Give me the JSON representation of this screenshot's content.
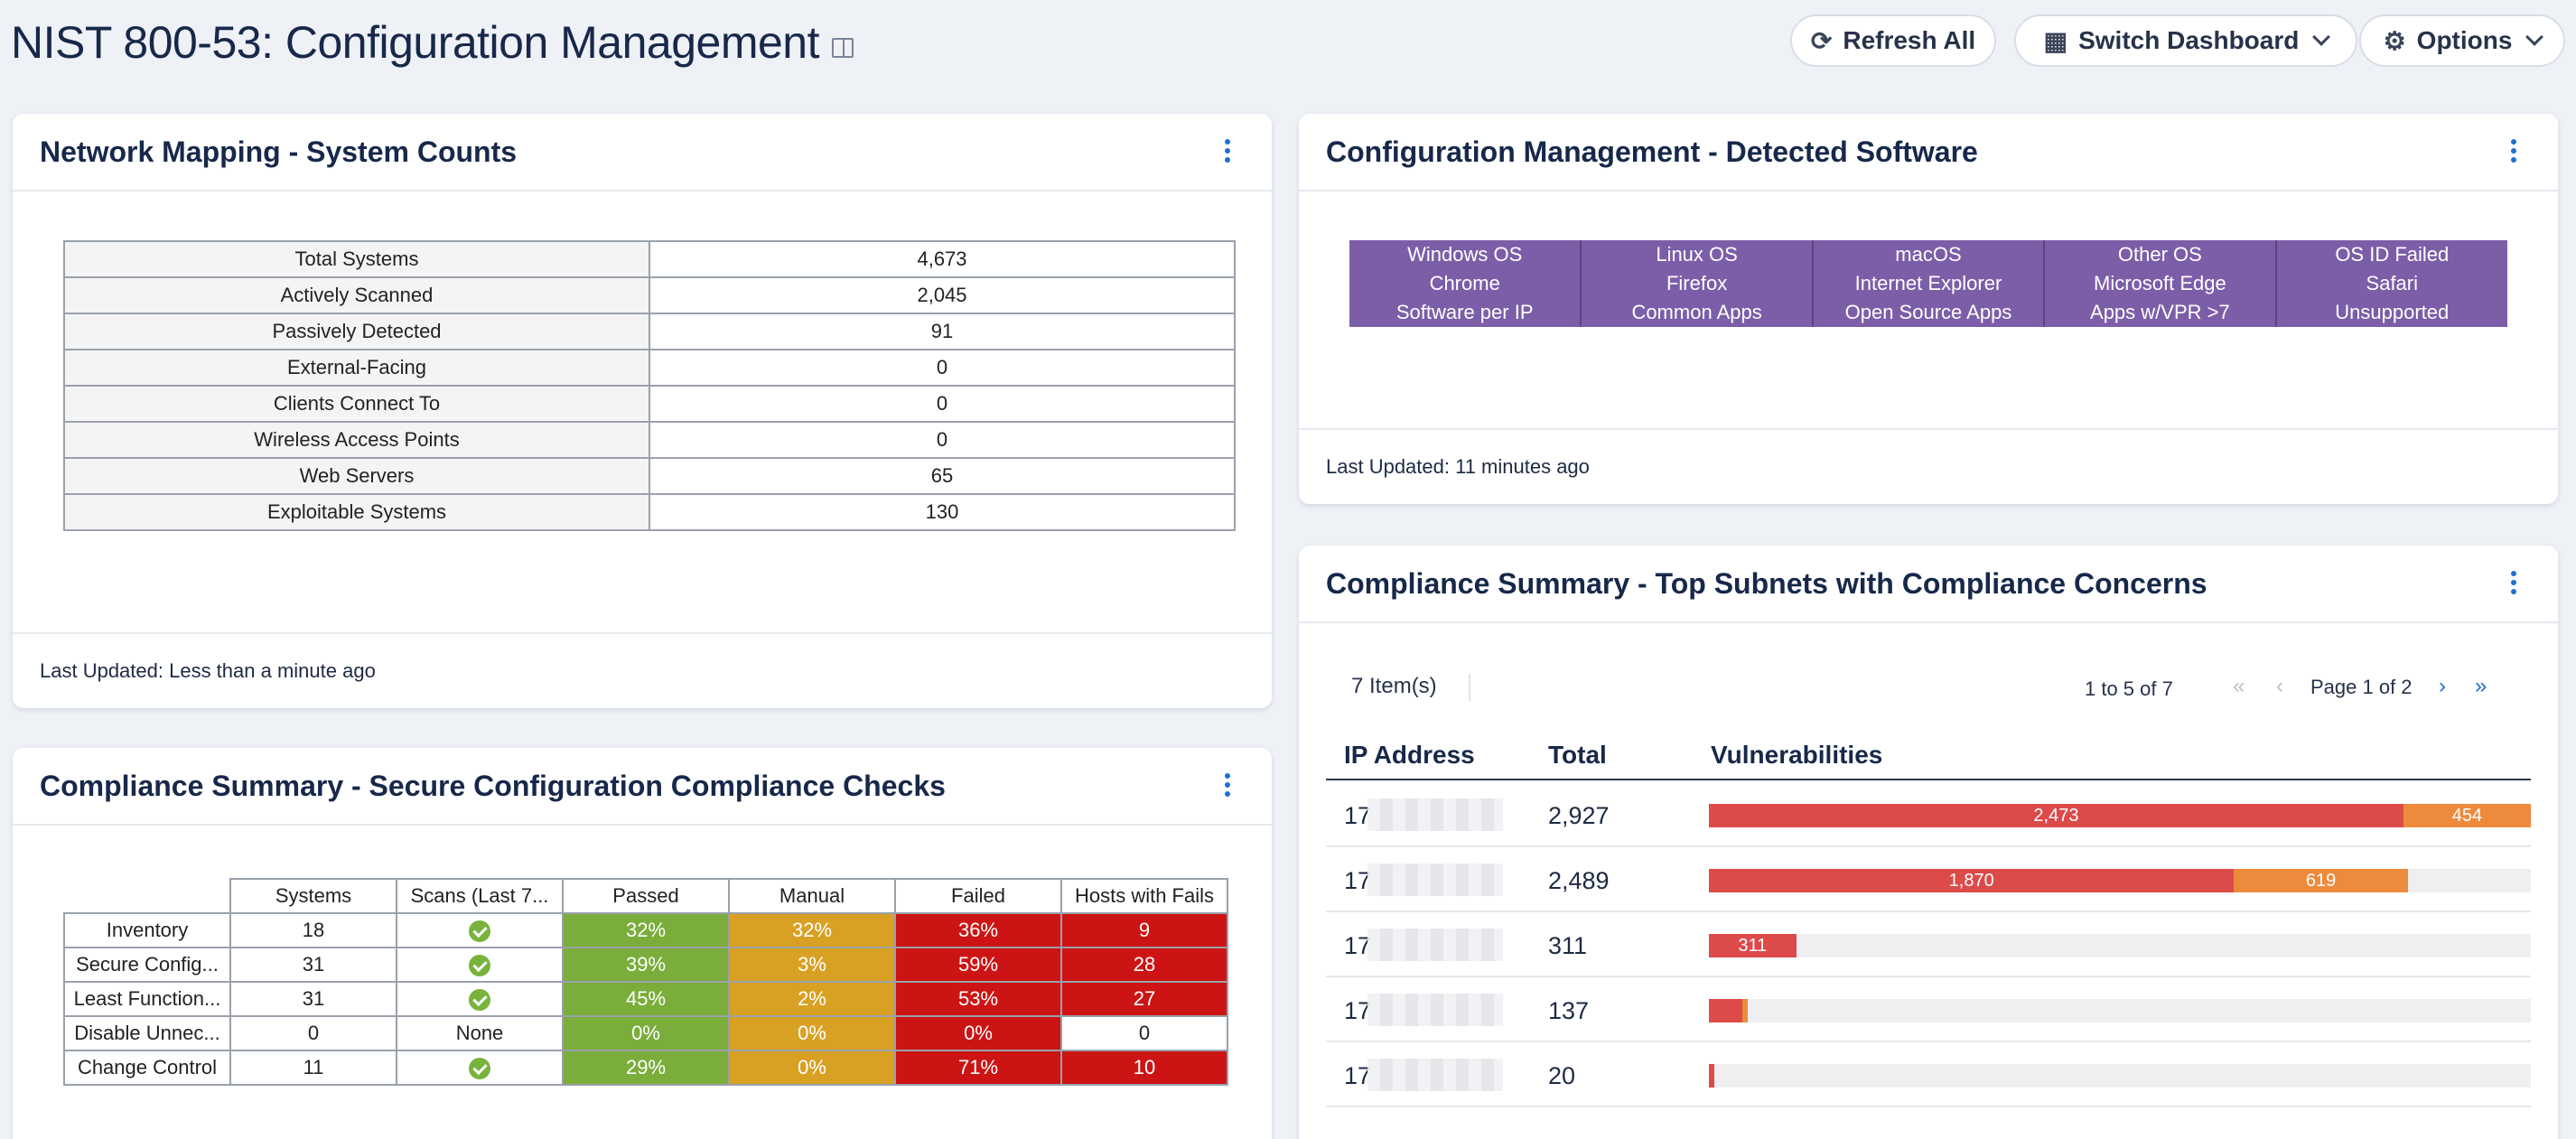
{
  "header": {
    "title": "NIST 800-53: Configuration Management",
    "refresh_label": "Refresh All",
    "switch_label": "Switch Dashboard",
    "options_label": "Options"
  },
  "system_counts": {
    "title": "Network Mapping - System Counts",
    "rows": [
      {
        "label": "Total Systems",
        "value": "4,673"
      },
      {
        "label": "Actively Scanned",
        "value": "2,045"
      },
      {
        "label": "Passively Detected",
        "value": "91"
      },
      {
        "label": "External-Facing",
        "value": "0"
      },
      {
        "label": "Clients Connect To",
        "value": "0"
      },
      {
        "label": "Wireless Access Points",
        "value": "0"
      },
      {
        "label": "Web Servers",
        "value": "65"
      },
      {
        "label": "Exploitable Systems",
        "value": "130"
      }
    ],
    "footer": "Last Updated: Less than a minute ago"
  },
  "detected_software": {
    "title": "Configuration Management - Detected Software",
    "rows": [
      [
        "Windows OS",
        "Linux OS",
        "macOS",
        "Other OS",
        "OS ID Failed"
      ],
      [
        "Chrome",
        "Firefox",
        "Internet Explorer",
        "Microsoft Edge",
        "Safari"
      ],
      [
        "Software per IP",
        "Common Apps",
        "Open Source Apps",
        "Apps w/VPR >7",
        "Unsupported"
      ]
    ],
    "footer": "Last Updated: 11 minutes ago"
  },
  "compliance_checks": {
    "title": "Compliance Summary - Secure Configuration Compliance Checks",
    "columns": [
      "Systems",
      "Scans (Last 7...",
      "Passed",
      "Manual",
      "Failed",
      "Hosts with Fails"
    ],
    "rows": [
      {
        "name": "Inventory",
        "systems": "18",
        "scans": "check",
        "passed": "32%",
        "manual": "32%",
        "failed": "36%",
        "hosts": "9"
      },
      {
        "name": "Secure Config...",
        "systems": "31",
        "scans": "check",
        "passed": "39%",
        "manual": "3%",
        "failed": "59%",
        "hosts": "28"
      },
      {
        "name": "Least Function...",
        "systems": "31",
        "scans": "check",
        "passed": "45%",
        "manual": "2%",
        "failed": "53%",
        "hosts": "27"
      },
      {
        "name": "Disable Unnec...",
        "systems": "0",
        "scans": "None",
        "passed": "0%",
        "manual": "0%",
        "failed": "0%",
        "hosts": "0"
      },
      {
        "name": "Change Control",
        "systems": "11",
        "scans": "check",
        "passed": "29%",
        "manual": "0%",
        "failed": "71%",
        "hosts": "10"
      }
    ],
    "colors": {
      "passed": "#7aad3a",
      "manual": "#d8a124",
      "failed": "#cc1414"
    }
  },
  "subnets": {
    "title": "Compliance Summary - Top Subnets with Compliance Concerns",
    "items_count": "7 Item(s)",
    "range": "1 to 5 of 7",
    "page": "Page 1 of 2",
    "headers": {
      "ip": "IP Address",
      "total": "Total",
      "vulns": "Vulnerabilities"
    },
    "max_total": 2927,
    "rows": [
      {
        "ip": "17",
        "total": "2,927",
        "critical": 2473,
        "high": 454,
        "critical_label": "2,473",
        "high_label": "454"
      },
      {
        "ip": "17",
        "total": "2,489",
        "critical": 1870,
        "high": 619,
        "critical_label": "1,870",
        "high_label": "619"
      },
      {
        "ip": "17",
        "total": "311",
        "critical": 311,
        "high": 0,
        "critical_label": "311",
        "high_label": ""
      },
      {
        "ip": "17",
        "total": "137",
        "critical": 118,
        "high": 19,
        "critical_label": "",
        "high_label": ""
      },
      {
        "ip": "17",
        "total": "20",
        "critical": 20,
        "high": 0,
        "critical_label": "",
        "high_label": ""
      }
    ],
    "colors": {
      "critical": "#dc4a4a",
      "high": "#ee8a3c"
    }
  }
}
